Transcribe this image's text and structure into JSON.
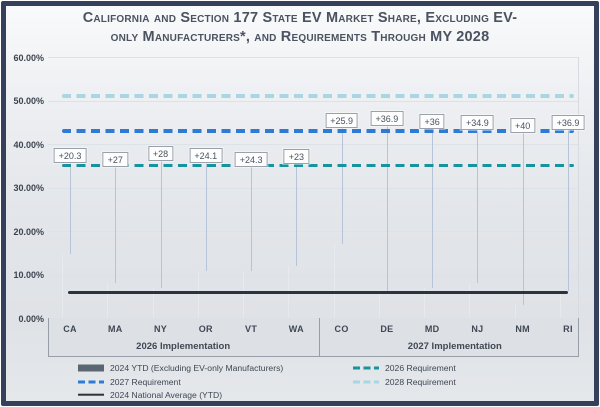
{
  "window": {
    "frame_color": "#35415a"
  },
  "chart_data": {
    "type": "bar",
    "title": "California and Section 177 State EV Market Share, Excluding EV-only Manufacturers*, and Requirements Through MY 2028",
    "title_lines": [
      "California and Section 177 State EV Market Share, Excluding EV-",
      "only Manufacturers*, and Requirements Through MY 2028"
    ],
    "ylim": [
      0,
      60
    ],
    "y_ticks": [
      "0.00%",
      "10.00%",
      "20.00%",
      "30.00%",
      "40.00%",
      "50.00%",
      "60.00%"
    ],
    "grid": true,
    "categories": [
      "CA",
      "MA",
      "NY",
      "OR",
      "VT",
      "WA",
      "CO",
      "DE",
      "MD",
      "NJ",
      "NM",
      "RI"
    ],
    "series": [
      {
        "name": "2024 YTD (Excluding EV-only Manufacturers)",
        "values": [
          14.7,
          8,
          7,
          10.9,
          10.7,
          12,
          17.1,
          6.1,
          7,
          8.1,
          3,
          6.1
        ]
      }
    ],
    "point_labels": [
      "+20.3",
      "+27",
      "+28",
      "+24.1",
      "+24.3",
      "+23",
      "+25.9",
      "+36.9",
      "+36",
      "+34.9",
      "+40",
      "+36.9"
    ],
    "groups": [
      {
        "label": "2026 Implementation",
        "categories": [
          "CA",
          "MA",
          "NY",
          "OR",
          "VT",
          "WA"
        ]
      },
      {
        "label": "2027 Implementation",
        "categories": [
          "CO",
          "DE",
          "MD",
          "NJ",
          "NM",
          "RI"
        ]
      }
    ],
    "reference_lines": [
      {
        "name": "2026 Requirement",
        "value": 35,
        "style": "dashed",
        "color": "#17939f"
      },
      {
        "name": "2027 Requirement",
        "value": 43,
        "style": "dashed",
        "color": "#2e7bd6"
      },
      {
        "name": "2028 Requirement",
        "value": 51,
        "style": "dashed",
        "color": "#a9d6e3"
      },
      {
        "name": "2024 National Average (YTD)",
        "value": 5.8,
        "style": "solid",
        "color": "#2b333f"
      }
    ],
    "bar_color_top": "#6f7b89",
    "bar_color_bottom": "#4a5562",
    "legend": {
      "position": "bottom",
      "columns": [
        [
          {
            "swatch": "bar",
            "color": "#5b6673",
            "label": "2024 YTD (Excluding EV-only Manufacturers)"
          },
          {
            "swatch": "dash",
            "color": "#2e7bd6",
            "label": "2027 Requirement"
          },
          {
            "swatch": "line",
            "color": "#2b333f",
            "label": "2024 National Average (YTD)"
          }
        ],
        [
          {
            "swatch": "dash",
            "color": "#17939f",
            "label": "2026 Requirement"
          },
          {
            "swatch": "dash",
            "color": "#a9d6e3",
            "label": "2028 Requirement"
          }
        ]
      ]
    }
  }
}
